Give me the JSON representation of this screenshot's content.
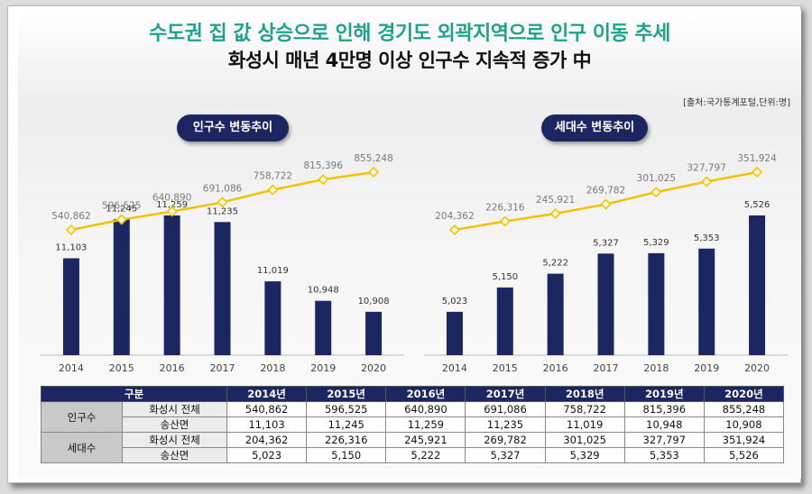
{
  "titles": {
    "line1": "수도권 집 값 상승으로 인해 경기도 외곽지역으로 인구 이동 추세",
    "line2": "화성시 매년 4만명 이상 인구수 지속적 증가 中"
  },
  "source_note": "[출처:국가통계포털,단위:명]",
  "chart_data": [
    {
      "type": "bar+line",
      "title": "인구수 변동추이",
      "categories": [
        "2014",
        "2015",
        "2016",
        "2017",
        "2018",
        "2019",
        "2020"
      ],
      "bar_series": {
        "name": "송산면",
        "values": [
          11103,
          11245,
          11259,
          11235,
          11019,
          10948,
          10908
        ]
      },
      "line_series": {
        "name": "화성시 전체",
        "values": [
          540862,
          596525,
          640890,
          691086,
          758722,
          815396,
          855248
        ]
      },
      "bar_labels": [
        "11,103",
        "11,245",
        "11,259",
        "11,235",
        "11,019",
        "10,948",
        "10,908"
      ],
      "line_labels": [
        "540,862",
        "596,525",
        "640,890",
        "691,086",
        "758,722",
        "815,396",
        "855,248"
      ],
      "colors": {
        "bar": "#1c2660",
        "line": "#f2c200",
        "marker": "#f2c200"
      }
    },
    {
      "type": "bar+line",
      "title": "세대수 변동추이",
      "categories": [
        "2014",
        "2015",
        "2016",
        "2017",
        "2018",
        "2019",
        "2020"
      ],
      "bar_series": {
        "name": "송산면",
        "values": [
          5023,
          5150,
          5222,
          5327,
          5329,
          5353,
          5526
        ]
      },
      "line_series": {
        "name": "화성시 전체",
        "values": [
          204362,
          226316,
          245921,
          269782,
          301025,
          327797,
          351924
        ]
      },
      "bar_labels": [
        "5,023",
        "5,150",
        "5,222",
        "5,327",
        "5,329",
        "5,353",
        "5,526"
      ],
      "line_labels": [
        "204,362",
        "226,316",
        "245,921",
        "269,782",
        "301,025",
        "327,797",
        "351,924"
      ],
      "colors": {
        "bar": "#1c2660",
        "line": "#f2c200",
        "marker": "#f2c200"
      }
    }
  ],
  "table": {
    "header_label": "구분",
    "years": [
      "2014년",
      "2015년",
      "2016년",
      "2017년",
      "2018년",
      "2019년",
      "2020년"
    ],
    "groups": [
      {
        "name": "인구수",
        "rows": [
          {
            "label": "화성시 전체",
            "values": [
              "540,862",
              "596,525",
              "640,890",
              "691,086",
              "758,722",
              "815,396",
              "855,248"
            ]
          },
          {
            "label": "송산면",
            "values": [
              "11,103",
              "11,245",
              "11,259",
              "11,235",
              "11,019",
              "10,948",
              "10,908"
            ]
          }
        ]
      },
      {
        "name": "세대수",
        "rows": [
          {
            "label": "화성시 전체",
            "values": [
              "204,362",
              "226,316",
              "245,921",
              "269,782",
              "301,025",
              "327,797",
              "351,924"
            ]
          },
          {
            "label": "송산면",
            "values": [
              "5,023",
              "5,150",
              "5,222",
              "5,327",
              "5,329",
              "5,353",
              "5,526"
            ]
          }
        ]
      }
    ]
  }
}
